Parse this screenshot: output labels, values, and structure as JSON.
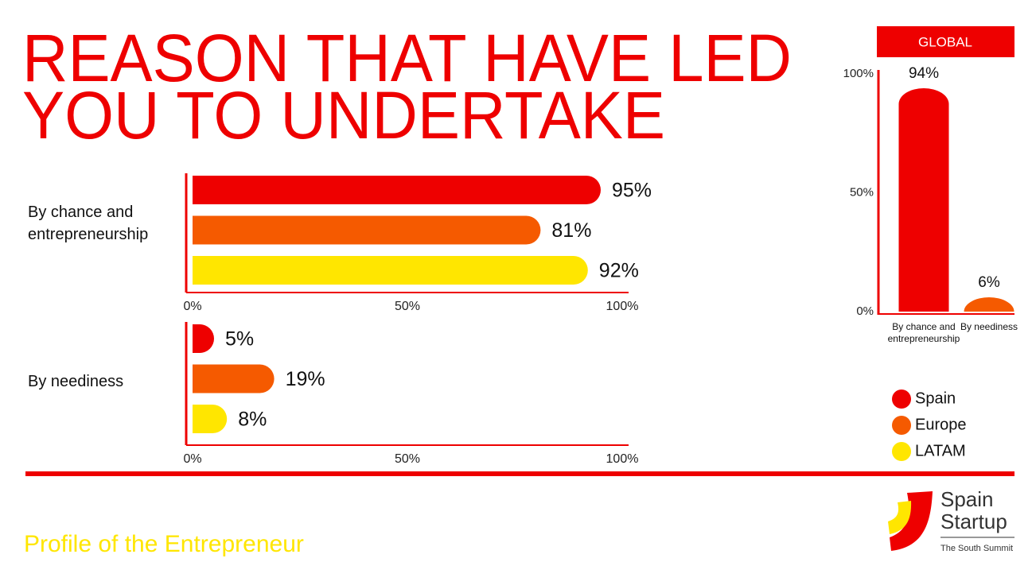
{
  "title_lines": [
    "REASON THAT HAVE LED",
    "YOU TO UNDERTAKE"
  ],
  "footer": "Profile of the Entrepreneur",
  "logo": {
    "name_lines": [
      "Spain",
      "Startup"
    ],
    "tagline": "The South Summit"
  },
  "chart_data": [
    {
      "type": "hbar",
      "categories": [
        "By chance and entrepreneurship"
      ],
      "series": [
        {
          "name": "Spain",
          "color": "#ee0000",
          "values": [
            95
          ],
          "value_labels": [
            "95%"
          ]
        },
        {
          "name": "Europe",
          "color": "#f55a00",
          "values": [
            81
          ],
          "value_labels": [
            "81%"
          ]
        },
        {
          "name": "LATAM",
          "color": "#ffe600",
          "values": [
            92
          ],
          "value_labels": [
            "92%"
          ]
        }
      ],
      "xlim": [
        0,
        100
      ],
      "xticks": [
        {
          "value": 0,
          "label": "0%"
        },
        {
          "value": 50,
          "label": "50%"
        },
        {
          "value": 100,
          "label": "100%"
        }
      ],
      "legend": "lower-right"
    },
    {
      "type": "hbar",
      "categories": [
        "By neediness"
      ],
      "series": [
        {
          "name": "Spain",
          "color": "#ee0000",
          "values": [
            5
          ],
          "value_labels": [
            "5%"
          ]
        },
        {
          "name": "Europe",
          "color": "#f55a00",
          "values": [
            19
          ],
          "value_labels": [
            "19%"
          ]
        },
        {
          "name": "LATAM",
          "color": "#ffe600",
          "values": [
            8
          ],
          "value_labels": [
            "8%"
          ]
        }
      ],
      "xlim": [
        0,
        100
      ],
      "xticks": [
        {
          "value": 0,
          "label": "0%"
        },
        {
          "value": 50,
          "label": "50%"
        },
        {
          "value": 100,
          "label": "100%"
        }
      ]
    },
    {
      "type": "bar",
      "title": "GLOBAL",
      "categories": [
        "By chance and entrepreneurship",
        "By neediness"
      ],
      "values": [
        94,
        6
      ],
      "value_labels": [
        "94%",
        "6%"
      ],
      "colors": [
        "#ee0000",
        "#f55a00"
      ],
      "ylim": [
        0,
        100
      ],
      "yticks": [
        {
          "value": 0,
          "label": "0%"
        },
        {
          "value": 50,
          "label": "50%"
        },
        {
          "value": 100,
          "label": "100%"
        }
      ]
    }
  ]
}
